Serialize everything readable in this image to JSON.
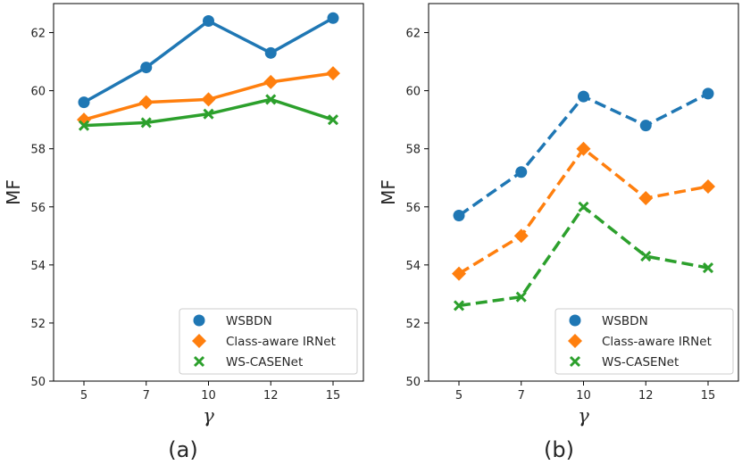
{
  "chart_data": [
    {
      "type": "line",
      "caption": "(a)",
      "xlabel": "γ",
      "ylabel": "MF",
      "categories": [
        "5",
        "7",
        "10",
        "12",
        "15"
      ],
      "ylim": [
        50,
        63
      ],
      "yticks": [
        50,
        52,
        54,
        56,
        58,
        60,
        62
      ],
      "line_style": "solid",
      "legend_position": "lower-right",
      "series": [
        {
          "name": "WSBDN",
          "marker": "circle",
          "color": "#1f77b4",
          "values": [
            59.6,
            60.8,
            62.4,
            61.3,
            62.5
          ]
        },
        {
          "name": "Class-aware IRNet",
          "marker": "diamond",
          "color": "#ff7f0e",
          "values": [
            59.0,
            59.6,
            59.7,
            60.3,
            60.6
          ]
        },
        {
          "name": "WS-CASENet",
          "marker": "x",
          "color": "#2ca02c",
          "values": [
            58.8,
            58.9,
            59.2,
            59.7,
            59.0
          ]
        }
      ]
    },
    {
      "type": "line",
      "caption": "(b)",
      "xlabel": "γ",
      "ylabel": "MF",
      "categories": [
        "5",
        "7",
        "10",
        "12",
        "15"
      ],
      "ylim": [
        50,
        63
      ],
      "yticks": [
        50,
        52,
        54,
        56,
        58,
        60,
        62
      ],
      "line_style": "dashed",
      "legend_position": "lower-right",
      "series": [
        {
          "name": "WSBDN",
          "marker": "circle",
          "color": "#1f77b4",
          "values": [
            55.7,
            57.2,
            59.8,
            58.8,
            59.9
          ]
        },
        {
          "name": "Class-aware IRNet",
          "marker": "diamond",
          "color": "#ff7f0e",
          "values": [
            53.7,
            55.0,
            58.0,
            56.3,
            56.7
          ]
        },
        {
          "name": "WS-CASENet",
          "marker": "x",
          "color": "#2ca02c",
          "values": [
            52.6,
            52.9,
            56.0,
            54.3,
            53.9
          ]
        }
      ]
    }
  ]
}
